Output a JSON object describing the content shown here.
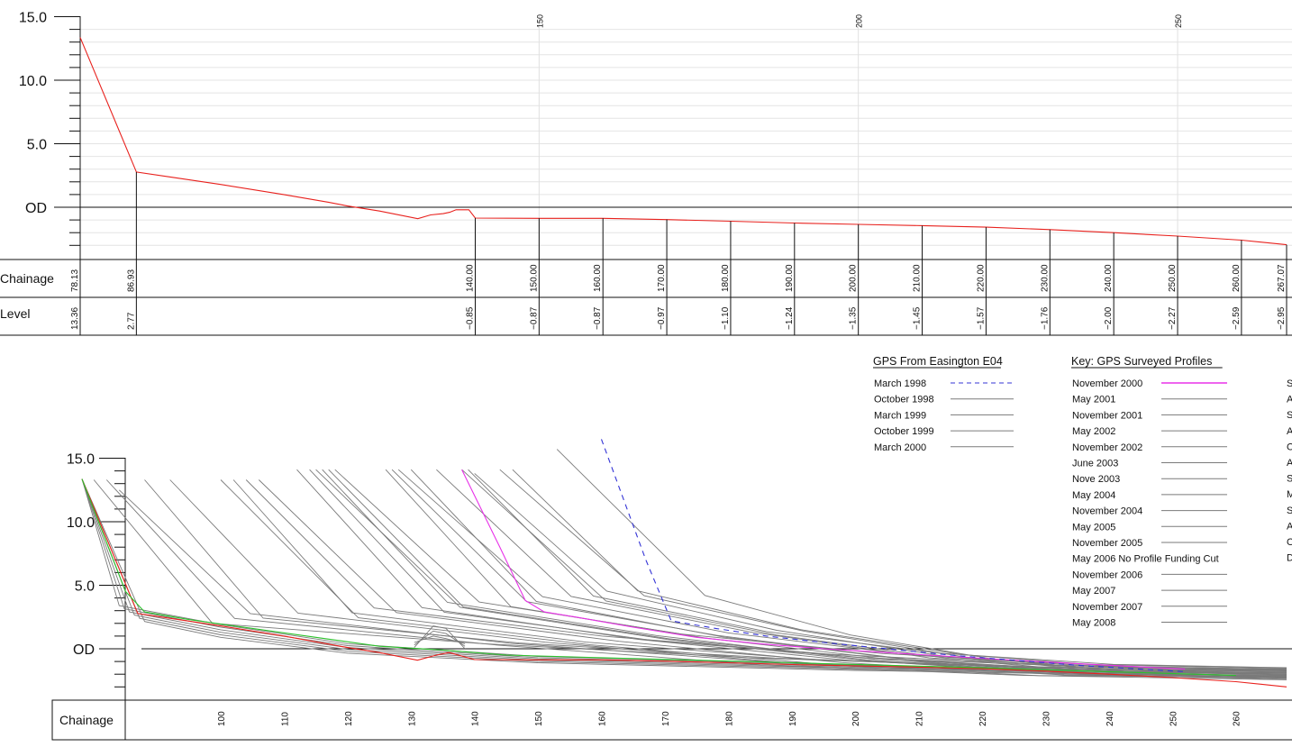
{
  "chart_data": [
    {
      "type": "line",
      "title": "",
      "xlabel": "",
      "ylabel": "",
      "x_range": [
        78.13,
        267.07
      ],
      "ylim": [
        -3.5,
        15.0
      ],
      "y_tick_labels": [
        "15.0",
        "10.0",
        "5.0",
        "OD"
      ],
      "faint_x_labels": [
        "150",
        "200",
        "250"
      ],
      "table_row_labels": {
        "chainage": "Chainage",
        "level": "Level"
      },
      "series": [
        {
          "color": "#e8211d",
          "points": [
            [
              78.13,
              13.36
            ],
            [
              86.93,
              2.77
            ],
            [
              92,
              2.4
            ],
            [
              100,
              1.8
            ],
            [
              110,
              1.0
            ],
            [
              117,
              0.4
            ],
            [
              120,
              0.1
            ],
            [
              125,
              -0.3
            ],
            [
              131,
              -0.9
            ],
            [
              133,
              -0.6
            ],
            [
              135,
              -0.5
            ],
            [
              136,
              -0.4
            ],
            [
              137,
              -0.2
            ],
            [
              139,
              -0.2
            ],
            [
              140,
              -0.85
            ],
            [
              150,
              -0.87
            ],
            [
              160,
              -0.87
            ],
            [
              170,
              -0.97
            ],
            [
              180,
              -1.1
            ],
            [
              190,
              -1.24
            ],
            [
              200,
              -1.35
            ],
            [
              210,
              -1.45
            ],
            [
              220,
              -1.57
            ],
            [
              230,
              -1.76
            ],
            [
              240,
              -2.0
            ],
            [
              250,
              -2.27
            ],
            [
              260,
              -2.59
            ],
            [
              267.07,
              -2.95
            ]
          ]
        }
      ],
      "stations": [
        {
          "chainage": "78.13",
          "level": "13.36"
        },
        {
          "chainage": "86.93",
          "level": "2.77"
        },
        {
          "chainage": "140.00",
          "level": "−0.85"
        },
        {
          "chainage": "150.00",
          "level": "−0.87"
        },
        {
          "chainage": "160.00",
          "level": "−0.87"
        },
        {
          "chainage": "170.00",
          "level": "−0.97"
        },
        {
          "chainage": "180.00",
          "level": "−1.10"
        },
        {
          "chainage": "190.00",
          "level": "−1.24"
        },
        {
          "chainage": "200.00",
          "level": "−1.35"
        },
        {
          "chainage": "210.00",
          "level": "−1.45"
        },
        {
          "chainage": "220.00",
          "level": "−1.57"
        },
        {
          "chainage": "230.00",
          "level": "−1.76"
        },
        {
          "chainage": "240.00",
          "level": "−2.00"
        },
        {
          "chainage": "250.00",
          "level": "−2.27"
        },
        {
          "chainage": "260.00",
          "level": "−2.59"
        },
        {
          "chainage": "267.07",
          "level": "−2.95"
        }
      ]
    },
    {
      "type": "line",
      "title": "",
      "xlabel": "",
      "ylabel": "",
      "x_range": [
        78.13,
        268
      ],
      "ylim": [
        -3.0,
        15.0
      ],
      "y_tick_labels": [
        "15.0",
        "10.0",
        "5.0",
        "OD"
      ],
      "table_row_labels": {
        "chainage": "Chainage"
      },
      "x_tick_labels": [
        "100",
        "110",
        "120",
        "130",
        "140",
        "150",
        "160",
        "170",
        "180",
        "190",
        "200",
        "210",
        "220",
        "230",
        "240",
        "250",
        "260"
      ],
      "colors": {
        "grey": "#7a7a7a",
        "red": "#e8211d",
        "green": "#2cc12c",
        "magenta": "#e832e8",
        "blue": "#3434d6"
      },
      "series": [
        {
          "color": "#e8211d",
          "points": [
            [
              78.13,
              13.36
            ],
            [
              86.93,
              2.77
            ],
            [
              92,
              2.4
            ],
            [
              100,
              1.8
            ],
            [
              110,
              1.0
            ],
            [
              120,
              0.1
            ],
            [
              125,
              -0.3
            ],
            [
              131,
              -0.9
            ],
            [
              134,
              -0.5
            ],
            [
              136,
              -0.3
            ],
            [
              140,
              -0.85
            ],
            [
              150,
              -0.87
            ],
            [
              160,
              -0.87
            ],
            [
              170,
              -0.97
            ],
            [
              180,
              -1.1
            ],
            [
              190,
              -1.24
            ],
            [
              200,
              -1.35
            ],
            [
              210,
              -1.45
            ],
            [
              220,
              -1.57
            ],
            [
              230,
              -1.76
            ],
            [
              240,
              -2.0
            ],
            [
              250,
              -2.27
            ],
            [
              260,
              -2.59
            ],
            [
              268,
              -3.0
            ]
          ]
        },
        {
          "color": "#2cc12c",
          "points": [
            [
              78.13,
              13.36
            ],
            [
              85,
              4.5
            ],
            [
              88,
              2.9
            ],
            [
              95,
              2.3
            ],
            [
              105,
              1.6
            ],
            [
              115,
              0.9
            ],
            [
              125,
              0.2
            ],
            [
              135,
              -0.1
            ],
            [
              145,
              -0.5
            ],
            [
              160,
              -0.7
            ],
            [
              175,
              -0.9
            ],
            [
              190,
              -1.1
            ],
            [
              205,
              -1.3
            ],
            [
              220,
              -1.5
            ],
            [
              240,
              -1.8
            ],
            [
              260,
              -2.1
            ]
          ]
        },
        {
          "color": "#e832e8",
          "points": [
            [
              138,
              14.1
            ],
            [
              144,
              8.0
            ],
            [
              148,
              3.8
            ],
            [
              151,
              2.9
            ],
            [
              156,
              2.5
            ],
            [
              165,
              1.7
            ],
            [
              175,
              0.9
            ],
            [
              185,
              0.4
            ],
            [
              195,
              0.0
            ],
            [
              205,
              -0.3
            ],
            [
              215,
              -0.6
            ],
            [
              225,
              -0.9
            ],
            [
              240,
              -1.3
            ],
            [
              252,
              -1.6
            ]
          ]
        },
        {
          "color": "#3434d6",
          "dash": true,
          "points": [
            [
              160,
              16.5
            ],
            [
              167,
              7.0
            ],
            [
              171,
              2.2
            ],
            [
              178,
              1.6
            ],
            [
              186,
              1.0
            ],
            [
              195,
              0.5
            ],
            [
              205,
              0.0
            ],
            [
              215,
              -0.5
            ],
            [
              225,
              -0.9
            ],
            [
              235,
              -1.3
            ],
            [
              245,
              -1.6
            ],
            [
              252,
              -1.8
            ]
          ]
        }
      ],
      "grey_profile_tops": [
        [
          80,
          13.3
        ],
        [
          82,
          13.3
        ],
        [
          84,
          12.5
        ],
        [
          88,
          13.3
        ],
        [
          92,
          13.3
        ],
        [
          100,
          13.3
        ],
        [
          102,
          13.3
        ],
        [
          104,
          13.3
        ],
        [
          106,
          13.3
        ],
        [
          112,
          14.1
        ],
        [
          114,
          14.1
        ],
        [
          115,
          14.1
        ],
        [
          116,
          14.1
        ],
        [
          117,
          14.1
        ],
        [
          118,
          14.1
        ],
        [
          126,
          14.1
        ],
        [
          127,
          14.1
        ],
        [
          128,
          14.1
        ],
        [
          130,
          14.1
        ],
        [
          134,
          14.1
        ],
        [
          138,
          14.1
        ],
        [
          139,
          14.1
        ],
        [
          140,
          13.8
        ],
        [
          144,
          14.1
        ],
        [
          146,
          14.1
        ],
        [
          153,
          15.7
        ]
      ],
      "grey_bump": {
        "x": 134.5,
        "top": 1.8
      }
    }
  ],
  "legend_e04": {
    "heading": "GPS From Easington E04",
    "entries": [
      {
        "label": "March 1998",
        "style": "dashed-blue"
      },
      {
        "label": "October 1998",
        "style": "grey"
      },
      {
        "label": "March 1999",
        "style": "grey"
      },
      {
        "label": "October 1999",
        "style": "grey"
      },
      {
        "label": "March 2000",
        "style": "grey"
      }
    ]
  },
  "legend_key": {
    "heading": "Key: GPS Surveyed Profiles",
    "entries": [
      {
        "label": "November 2000",
        "style": "magenta"
      },
      {
        "label": "May 2001",
        "style": "grey"
      },
      {
        "label": "November 2001",
        "style": "grey"
      },
      {
        "label": "May 2002",
        "style": "grey"
      },
      {
        "label": "November 2002",
        "style": "grey"
      },
      {
        "label": "June 2003",
        "style": "grey"
      },
      {
        "label": "Nove 2003",
        "style": "grey"
      },
      {
        "label": "May 2004",
        "style": "grey"
      },
      {
        "label": "November 2004",
        "style": "grey"
      },
      {
        "label": "May 2005",
        "style": "grey"
      },
      {
        "label": "November 2005",
        "style": "grey"
      },
      {
        "label": "May 2006 No Profile Funding Cut",
        "style": "none"
      },
      {
        "label": "November 2006",
        "style": "grey"
      },
      {
        "label": "May 2007",
        "style": "grey"
      },
      {
        "label": "November 2007",
        "style": "grey"
      },
      {
        "label": "May 2008",
        "style": "grey"
      }
    ]
  },
  "legend_third_cut_letters": [
    "S",
    "A",
    "S",
    "A",
    "O",
    "A",
    "S",
    "M",
    "S",
    "A",
    "O",
    "D"
  ]
}
